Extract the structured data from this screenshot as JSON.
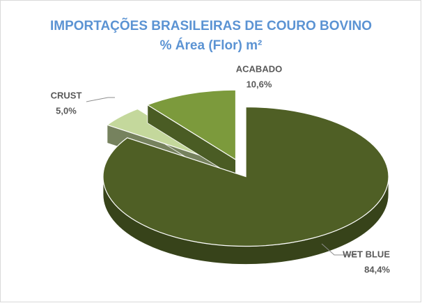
{
  "chart_data": {
    "type": "pie",
    "title": "IMPORTAÇÕES BRASILEIRAS DE COURO BOVINO",
    "subtitle": "% Área (Flor) m²",
    "categories": [
      "WET BLUE",
      "CRUST",
      "ACABADO"
    ],
    "values": [
      84.4,
      5.0,
      10.6
    ],
    "value_labels": [
      "84,4%",
      "5,0%",
      "10,6%"
    ],
    "colors": [
      "#4f5f25",
      "#c4d89c",
      "#7c9a3c"
    ]
  }
}
